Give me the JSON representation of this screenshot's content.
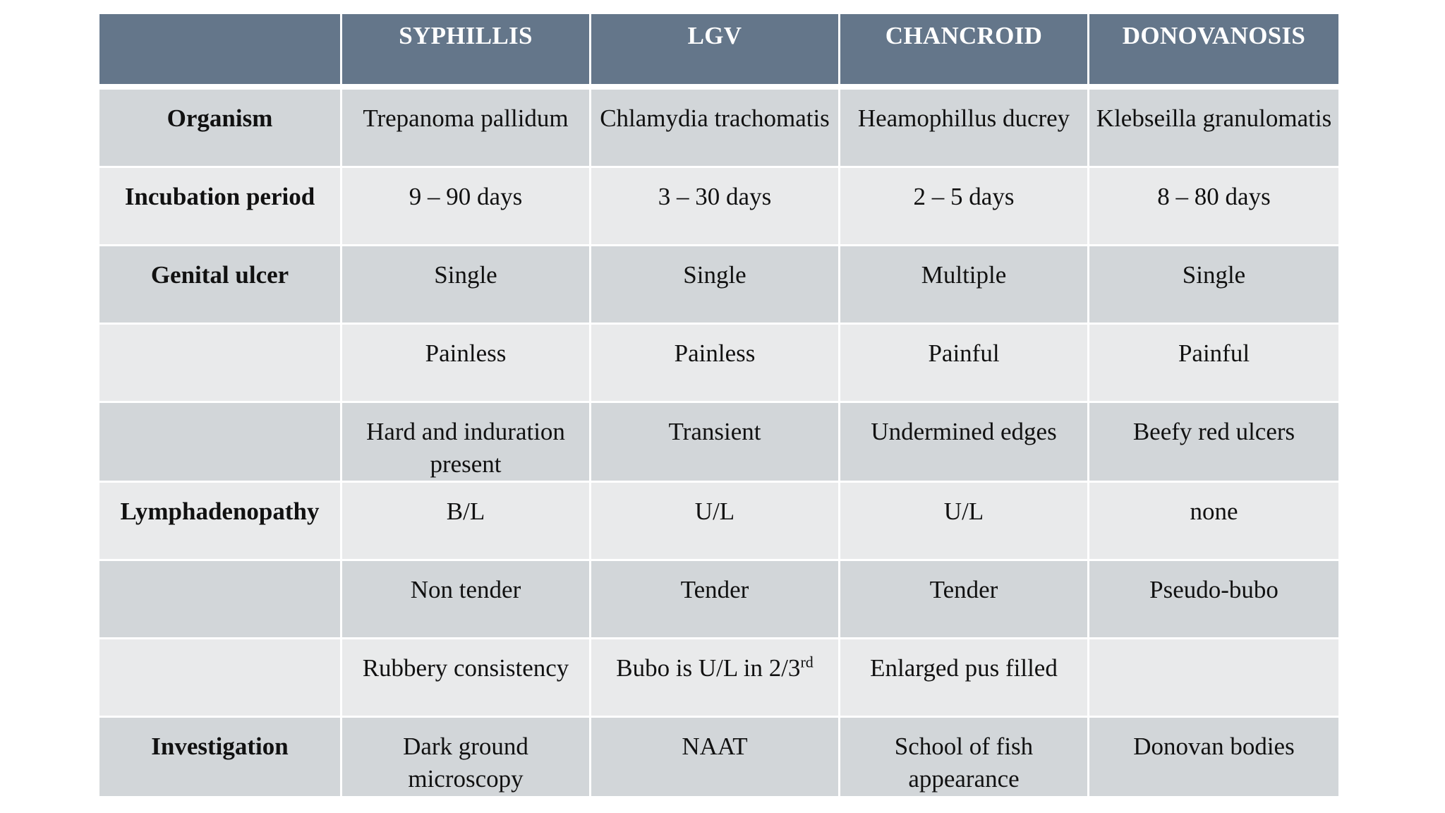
{
  "table": {
    "columns": [
      "",
      "SYPHILLIS",
      "LGV",
      "CHANCROID",
      "DONOVANOSIS"
    ],
    "rows": [
      {
        "label": "Organism",
        "cells": [
          "Trepanoma pallidum",
          "Chlamydia trachomatis",
          "Heamophillus ducrey",
          "Klebseilla granulomatis"
        ]
      },
      {
        "label": "Incubation period",
        "cells": [
          "9 – 90 days",
          "3 – 30 days",
          "2 – 5 days",
          "8 – 80 days"
        ]
      },
      {
        "label": "Genital ulcer",
        "cells": [
          "Single",
          "Single",
          "Multiple",
          "Single"
        ]
      },
      {
        "label": "",
        "cells": [
          "Painless",
          "Painless",
          "Painful",
          "Painful"
        ]
      },
      {
        "label": "",
        "cells": [
          "Hard and induration present",
          "Transient",
          "Undermined edges",
          "Beefy red ulcers"
        ]
      },
      {
        "label": "Lymphadenopathy",
        "cells": [
          "B/L",
          "U/L",
          "U/L",
          "none"
        ]
      },
      {
        "label": "",
        "cells": [
          "Non tender",
          "Tender",
          "Tender",
          "Pseudo-bubo"
        ]
      },
      {
        "label": "",
        "cells": [
          "Rubbery consistency",
          "Bubo is U/L in 2/3",
          "Enlarged pus filled",
          ""
        ]
      },
      {
        "label": "Investigation",
        "cells": [
          "Dark ground microscopy",
          "NAAT",
          "School of fish appearance",
          "Donovan bodies"
        ]
      }
    ],
    "superscripts": {
      "r7_c1": "rd"
    }
  },
  "colors": {
    "header_bg": "#64768a",
    "header_text": "#ffffff",
    "row_dark": "#d2d6d9",
    "row_light": "#e9eaeb",
    "grid_line": "#ffffff"
  }
}
